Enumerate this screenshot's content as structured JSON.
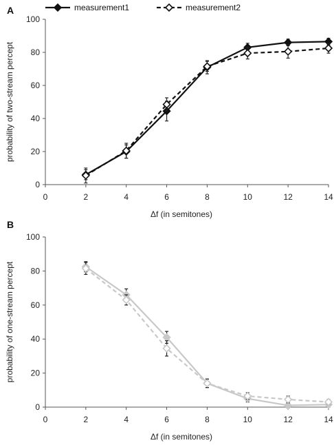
{
  "chart_data": [
    {
      "panel_label": "A",
      "type": "line",
      "x": [
        2,
        4,
        6,
        8,
        10,
        12,
        14
      ],
      "xlabel": "Δf (in semitones)",
      "ylabel": "probability of two-stream percept",
      "xlim": [
        0,
        14
      ],
      "ylim": [
        0,
        100
      ],
      "xticks": [
        "0",
        "2",
        "4",
        "6",
        "8",
        "10",
        "12",
        "14"
      ],
      "yticks": [
        "0",
        "20",
        "40",
        "60",
        "80",
        "100"
      ],
      "grid": false,
      "legend": "top",
      "series": [
        {
          "name": "measurement1",
          "color": "#111111",
          "style": "solid",
          "marker": "diamond-filled",
          "values": [
            6,
            20,
            44.5,
            71,
            83,
            86,
            86.5
          ],
          "error": [
            3,
            4,
            6,
            4,
            2.5,
            2,
            2
          ]
        },
        {
          "name": "measurement2",
          "color": "#111111",
          "style": "dashed",
          "marker": "diamond-open",
          "values": [
            5.5,
            20.5,
            48.5,
            71.5,
            79.5,
            80.5,
            82.5
          ],
          "error": [
            4.5,
            4.5,
            4,
            3,
            3.5,
            4,
            3
          ]
        }
      ]
    },
    {
      "panel_label": "B",
      "type": "line",
      "x": [
        2,
        4,
        6,
        8,
        10,
        12,
        14
      ],
      "xlabel": "Δf (in semitones)",
      "ylabel": "probability of one-stream percept",
      "xlim": [
        0,
        14
      ],
      "ylim": [
        0,
        100
      ],
      "xticks": [
        "0",
        "2",
        "4",
        "6",
        "8",
        "10",
        "12",
        "14"
      ],
      "yticks": [
        "0",
        "20",
        "40",
        "60",
        "80",
        "100"
      ],
      "grid": false,
      "series": [
        {
          "name": "measurement1",
          "color": "#c8c8c8",
          "style": "solid",
          "marker": "diamond-filled",
          "values": [
            82.5,
            66,
            41,
            14,
            5,
            1,
            1.5
          ],
          "error": [
            3,
            3.5,
            3.5,
            2.5,
            2,
            1.5,
            1.5
          ]
        },
        {
          "name": "measurement2",
          "color": "#c8c8c8",
          "style": "dashed",
          "marker": "diamond-open",
          "values": [
            81.5,
            63,
            34.5,
            14,
            6.5,
            4.5,
            3
          ],
          "error": [
            3.5,
            3,
            4.5,
            2.5,
            2,
            2,
            1.5
          ]
        }
      ]
    }
  ]
}
